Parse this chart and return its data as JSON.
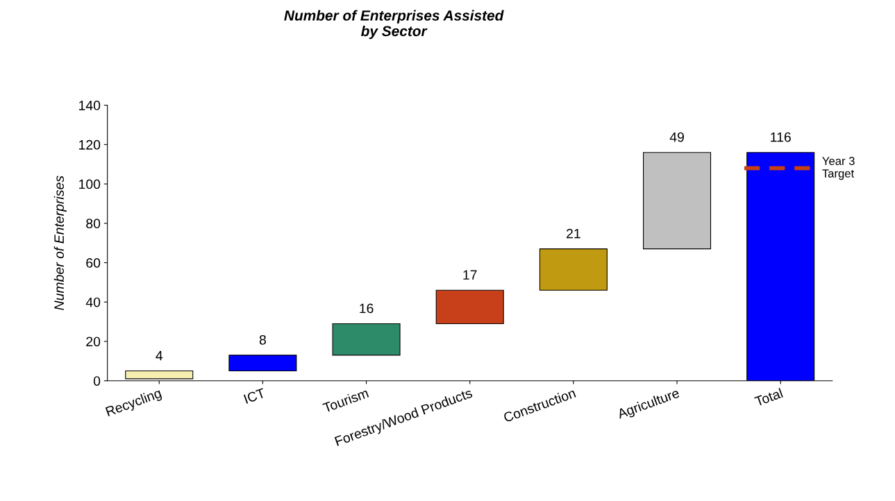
{
  "chart_data": {
    "type": "bar",
    "title": "Number of Enterprises Assisted\nby Sector",
    "ylabel": "Number of Enterprises",
    "categories": [
      "Recycling",
      "ICT",
      "Tourism",
      "Forestry/Wood Products",
      "Construction",
      "Agriculture",
      "Total"
    ],
    "values": [
      4,
      8,
      16,
      17,
      21,
      49,
      116
    ],
    "base": [
      1,
      5,
      13,
      29,
      46,
      67,
      0
    ],
    "colors": [
      "#f5eeb0",
      "#0000ff",
      "#2e8b6a",
      "#c8401a",
      "#c09a10",
      "#c0c0c0",
      "#0000ff"
    ],
    "data_labels": true,
    "ylim": [
      0,
      140
    ],
    "yticks": [
      0,
      20,
      40,
      60,
      80,
      100,
      120,
      140
    ],
    "ref_lines": [
      {
        "axis": "y",
        "value": 108,
        "label": "Year 3\nTarget",
        "color": "#c84010",
        "line_style": "dashed"
      }
    ],
    "grid": false,
    "legend": false
  }
}
